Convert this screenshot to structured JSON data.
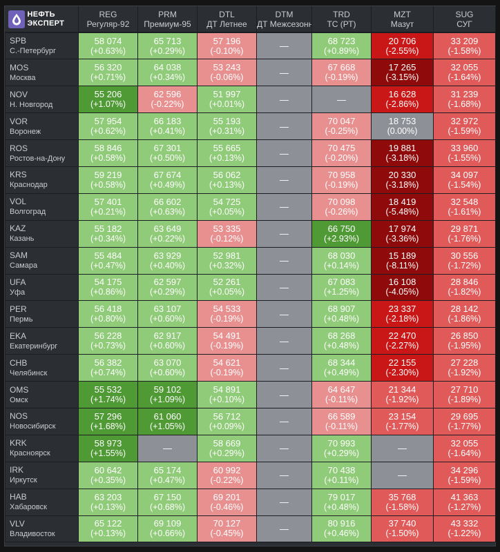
{
  "brand": {
    "line1": "НЕФТЬ",
    "line2": "ЭКСПЕРТ"
  },
  "columns": [
    {
      "code": "REG",
      "name": "Регуляр-92"
    },
    {
      "code": "PRM",
      "name": "Премиум-95"
    },
    {
      "code": "DTL",
      "name": "ДТ Летнее"
    },
    {
      "code": "DTM",
      "name": "ДТ Межсезонное"
    },
    {
      "code": "TRD",
      "name": "ТС (РТ)"
    },
    {
      "code": "MZT",
      "name": "Мазут"
    },
    {
      "code": "SUG",
      "name": "СУГ"
    }
  ],
  "colors": {
    "lg": "#8fcb78",
    "dg": "#4f9a35",
    "lr": "#e89090",
    "rr": "#e15a5a",
    "dr": "#c91616",
    "xr": "#8f0b0b",
    "gy": "#8d9096"
  },
  "rows": [
    {
      "code": "SPB",
      "name": "С.-Петербург",
      "cells": [
        {
          "v": "58 074",
          "c": "(+0.63%)",
          "t": "lg"
        },
        {
          "v": "65 713",
          "c": "(+0.29%)",
          "t": "lg"
        },
        {
          "v": "57 196",
          "c": "(-0.10%)",
          "t": "lr"
        },
        {
          "v": "—",
          "c": "",
          "t": "gy"
        },
        {
          "v": "68 723",
          "c": "(+0.89%)",
          "t": "lg"
        },
        {
          "v": "20 706",
          "c": "(-2.55%)",
          "t": "dr"
        },
        {
          "v": "33 209",
          "c": "(-1.58%)",
          "t": "rr"
        }
      ]
    },
    {
      "code": "MOS",
      "name": "Москва",
      "cells": [
        {
          "v": "56 320",
          "c": "(+0.71%)",
          "t": "lg"
        },
        {
          "v": "64 038",
          "c": "(+0.34%)",
          "t": "lg"
        },
        {
          "v": "53 243",
          "c": "(-0.06%)",
          "t": "lr"
        },
        {
          "v": "—",
          "c": "",
          "t": "gy"
        },
        {
          "v": "67 668",
          "c": "(-0.19%)",
          "t": "lr"
        },
        {
          "v": "17 265",
          "c": "(-3.15%)",
          "t": "xr"
        },
        {
          "v": "32 055",
          "c": "(-1.64%)",
          "t": "rr"
        }
      ]
    },
    {
      "code": "NOV",
      "name": "Н. Новгород",
      "cells": [
        {
          "v": "55 206",
          "c": "(+1.07%)",
          "t": "dg"
        },
        {
          "v": "62 596",
          "c": "(-0.22%)",
          "t": "lr"
        },
        {
          "v": "51 997",
          "c": "(+0.01%)",
          "t": "lg"
        },
        {
          "v": "—",
          "c": "",
          "t": "gy"
        },
        {
          "v": "—",
          "c": "",
          "t": "gy"
        },
        {
          "v": "16 628",
          "c": "(-2.86%)",
          "t": "dr"
        },
        {
          "v": "31 239",
          "c": "(-1.68%)",
          "t": "rr"
        }
      ]
    },
    {
      "code": "VOR",
      "name": "Воронеж",
      "cells": [
        {
          "v": "57 954",
          "c": "(+0.62%)",
          "t": "lg"
        },
        {
          "v": "66 183",
          "c": "(+0.41%)",
          "t": "lg"
        },
        {
          "v": "55 193",
          "c": "(+0.31%)",
          "t": "lg"
        },
        {
          "v": "—",
          "c": "",
          "t": "gy"
        },
        {
          "v": "70 047",
          "c": "(-0.25%)",
          "t": "lr"
        },
        {
          "v": "18 753",
          "c": "(0.00%)",
          "t": "gy"
        },
        {
          "v": "32 972",
          "c": "(-1.59%)",
          "t": "rr"
        }
      ]
    },
    {
      "code": "ROS",
      "name": "Ростов-на-Дону",
      "cells": [
        {
          "v": "58 846",
          "c": "(+0.58%)",
          "t": "lg"
        },
        {
          "v": "67 301",
          "c": "(+0.50%)",
          "t": "lg"
        },
        {
          "v": "55 665",
          "c": "(+0.13%)",
          "t": "lg"
        },
        {
          "v": "—",
          "c": "",
          "t": "gy"
        },
        {
          "v": "70 475",
          "c": "(-0.20%)",
          "t": "lr"
        },
        {
          "v": "19 881",
          "c": "(-3.18%)",
          "t": "xr"
        },
        {
          "v": "33 960",
          "c": "(-1.55%)",
          "t": "rr"
        }
      ]
    },
    {
      "code": "KRS",
      "name": "Краснодар",
      "cells": [
        {
          "v": "59 219",
          "c": "(+0.58%)",
          "t": "lg"
        },
        {
          "v": "67 674",
          "c": "(+0.49%)",
          "t": "lg"
        },
        {
          "v": "56 062",
          "c": "(+0.13%)",
          "t": "lg"
        },
        {
          "v": "—",
          "c": "",
          "t": "gy"
        },
        {
          "v": "70 958",
          "c": "(-0.19%)",
          "t": "lr"
        },
        {
          "v": "20 330",
          "c": "(-3.18%)",
          "t": "xr"
        },
        {
          "v": "34 097",
          "c": "(-1.54%)",
          "t": "rr"
        }
      ]
    },
    {
      "code": "VOL",
      "name": "Волгоград",
      "cells": [
        {
          "v": "57 401",
          "c": "(+0.21%)",
          "t": "lg"
        },
        {
          "v": "66 602",
          "c": "(+0.63%)",
          "t": "lg"
        },
        {
          "v": "54 725",
          "c": "(+0.05%)",
          "t": "lg"
        },
        {
          "v": "—",
          "c": "",
          "t": "gy"
        },
        {
          "v": "70 098",
          "c": "(-0.26%)",
          "t": "lr"
        },
        {
          "v": "18 419",
          "c": "(-5.48%)",
          "t": "xr"
        },
        {
          "v": "32 548",
          "c": "(-1.61%)",
          "t": "rr"
        }
      ]
    },
    {
      "code": "KAZ",
      "name": "Казань",
      "cells": [
        {
          "v": "55 182",
          "c": "(+0.34%)",
          "t": "lg"
        },
        {
          "v": "63 649",
          "c": "(+0.22%)",
          "t": "lg"
        },
        {
          "v": "53 335",
          "c": "(-0.12%)",
          "t": "lr"
        },
        {
          "v": "—",
          "c": "",
          "t": "gy"
        },
        {
          "v": "66 750",
          "c": "(+2.93%)",
          "t": "dg"
        },
        {
          "v": "17 974",
          "c": "(-3.36%)",
          "t": "xr"
        },
        {
          "v": "29 871",
          "c": "(-1.76%)",
          "t": "rr"
        }
      ]
    },
    {
      "code": "SAM",
      "name": "Самара",
      "cells": [
        {
          "v": "55 484",
          "c": "(+0.47%)",
          "t": "lg"
        },
        {
          "v": "63 929",
          "c": "(+0.40%)",
          "t": "lg"
        },
        {
          "v": "52 981",
          "c": "(+0.32%)",
          "t": "lg"
        },
        {
          "v": "—",
          "c": "",
          "t": "gy"
        },
        {
          "v": "68 030",
          "c": "(+0.14%)",
          "t": "lg"
        },
        {
          "v": "15 189",
          "c": "(-8.11%)",
          "t": "xr"
        },
        {
          "v": "30 556",
          "c": "(-1.72%)",
          "t": "rr"
        }
      ]
    },
    {
      "code": "UFA",
      "name": "Уфа",
      "cells": [
        {
          "v": "54 175",
          "c": "(+0.86%)",
          "t": "lg"
        },
        {
          "v": "62 597",
          "c": "(+0.29%)",
          "t": "lg"
        },
        {
          "v": "52 261",
          "c": "(+0.05%)",
          "t": "lg"
        },
        {
          "v": "—",
          "c": "",
          "t": "gy"
        },
        {
          "v": "67 083",
          "c": "(+1.25%)",
          "t": "lg"
        },
        {
          "v": "16 108",
          "c": "(-4.05%)",
          "t": "xr"
        },
        {
          "v": "28 846",
          "c": "(-1.82%)",
          "t": "rr"
        }
      ]
    },
    {
      "code": "PER",
      "name": "Пермь",
      "cells": [
        {
          "v": "56 418",
          "c": "(+0.80%)",
          "t": "lg"
        },
        {
          "v": "63 107",
          "c": "(+0.60%)",
          "t": "lg"
        },
        {
          "v": "54 533",
          "c": "(-0.19%)",
          "t": "lr"
        },
        {
          "v": "—",
          "c": "",
          "t": "gy"
        },
        {
          "v": "68 907",
          "c": "(+0.48%)",
          "t": "lg"
        },
        {
          "v": "23 337",
          "c": "(-2.18%)",
          "t": "dr"
        },
        {
          "v": "28 142",
          "c": "(-1.86%)",
          "t": "rr"
        }
      ]
    },
    {
      "code": "EKA",
      "name": "Екатеринбург",
      "cells": [
        {
          "v": "56 228",
          "c": "(+0.73%)",
          "t": "lg"
        },
        {
          "v": "62 917",
          "c": "(+0.60%)",
          "t": "lg"
        },
        {
          "v": "54 491",
          "c": "(-0.19%)",
          "t": "lr"
        },
        {
          "v": "—",
          "c": "",
          "t": "gy"
        },
        {
          "v": "68 268",
          "c": "(+0.48%)",
          "t": "lg"
        },
        {
          "v": "22 470",
          "c": "(-2.27%)",
          "t": "dr"
        },
        {
          "v": "26 850",
          "c": "(-1.95%)",
          "t": "rr"
        }
      ]
    },
    {
      "code": "CHB",
      "name": "Челябинск",
      "cells": [
        {
          "v": "56 382",
          "c": "(+0.74%)",
          "t": "lg"
        },
        {
          "v": "63 070",
          "c": "(+0.60%)",
          "t": "lg"
        },
        {
          "v": "54 621",
          "c": "(-0.19%)",
          "t": "lr"
        },
        {
          "v": "—",
          "c": "",
          "t": "gy"
        },
        {
          "v": "68 344",
          "c": "(+0.49%)",
          "t": "lg"
        },
        {
          "v": "22 155",
          "c": "(-2.30%)",
          "t": "dr"
        },
        {
          "v": "27 228",
          "c": "(-1.92%)",
          "t": "rr"
        }
      ]
    },
    {
      "code": "OMS",
      "name": "Омск",
      "cells": [
        {
          "v": "55 532",
          "c": "(+1.74%)",
          "t": "dg"
        },
        {
          "v": "59 102",
          "c": "(+1.09%)",
          "t": "dg"
        },
        {
          "v": "54 891",
          "c": "(+0.10%)",
          "t": "lg"
        },
        {
          "v": "—",
          "c": "",
          "t": "gy"
        },
        {
          "v": "64 647",
          "c": "(-0.11%)",
          "t": "lr"
        },
        {
          "v": "21 344",
          "c": "(-1.92%)",
          "t": "rr"
        },
        {
          "v": "27 710",
          "c": "(-1.89%)",
          "t": "rr"
        }
      ]
    },
    {
      "code": "NOS",
      "name": "Новосибирск",
      "cells": [
        {
          "v": "57 296",
          "c": "(+1.68%)",
          "t": "dg"
        },
        {
          "v": "61 060",
          "c": "(+1.05%)",
          "t": "dg"
        },
        {
          "v": "56 712",
          "c": "(+0.09%)",
          "t": "lg"
        },
        {
          "v": "—",
          "c": "",
          "t": "gy"
        },
        {
          "v": "66 589",
          "c": "(-0.11%)",
          "t": "lr"
        },
        {
          "v": "23 154",
          "c": "(-1.77%)",
          "t": "rr"
        },
        {
          "v": "29 695",
          "c": "(-1.77%)",
          "t": "rr"
        }
      ]
    },
    {
      "code": "KRK",
      "name": "Красноярск",
      "cells": [
        {
          "v": "58 973",
          "c": "(+1.55%)",
          "t": "dg"
        },
        {
          "v": "—",
          "c": "",
          "t": "gy"
        },
        {
          "v": "58 669",
          "c": "(+0.29%)",
          "t": "lg"
        },
        {
          "v": "—",
          "c": "",
          "t": "gy"
        },
        {
          "v": "70 993",
          "c": "(+0.29%)",
          "t": "lg"
        },
        {
          "v": "—",
          "c": "",
          "t": "gy"
        },
        {
          "v": "32 055",
          "c": "(-1.64%)",
          "t": "rr"
        }
      ]
    },
    {
      "code": "IRK",
      "name": "Иркутск",
      "cells": [
        {
          "v": "60 642",
          "c": "(+0.35%)",
          "t": "lg"
        },
        {
          "v": "65 174",
          "c": "(+0.47%)",
          "t": "lg"
        },
        {
          "v": "60 992",
          "c": "(-0.22%)",
          "t": "lr"
        },
        {
          "v": "—",
          "c": "",
          "t": "gy"
        },
        {
          "v": "70 438",
          "c": "(+0.11%)",
          "t": "lg"
        },
        {
          "v": "—",
          "c": "",
          "t": "gy"
        },
        {
          "v": "34 296",
          "c": "(-1.59%)",
          "t": "rr"
        }
      ]
    },
    {
      "code": "HAB",
      "name": "Хабаровск",
      "cells": [
        {
          "v": "63 203",
          "c": "(+0.13%)",
          "t": "lg"
        },
        {
          "v": "67 150",
          "c": "(+0.68%)",
          "t": "lg"
        },
        {
          "v": "69 201",
          "c": "(-0.46%)",
          "t": "lr"
        },
        {
          "v": "—",
          "c": "",
          "t": "gy"
        },
        {
          "v": "79 017",
          "c": "(+0.48%)",
          "t": "lg"
        },
        {
          "v": "35 768",
          "c": "(-1.58%)",
          "t": "rr"
        },
        {
          "v": "41 363",
          "c": "(-1.27%)",
          "t": "rr"
        }
      ]
    },
    {
      "code": "VLV",
      "name": "Владивосток",
      "cells": [
        {
          "v": "65 122",
          "c": "(+0.13%)",
          "t": "lg"
        },
        {
          "v": "69 109",
          "c": "(+0.66%)",
          "t": "lg"
        },
        {
          "v": "70 127",
          "c": "(-0.45%)",
          "t": "lr"
        },
        {
          "v": "—",
          "c": "",
          "t": "gy"
        },
        {
          "v": "80 916",
          "c": "(+0.46%)",
          "t": "lg"
        },
        {
          "v": "37 740",
          "c": "(-1.50%)",
          "t": "rr"
        },
        {
          "v": "43 332",
          "c": "(-1.22%)",
          "t": "rr"
        }
      ]
    }
  ]
}
